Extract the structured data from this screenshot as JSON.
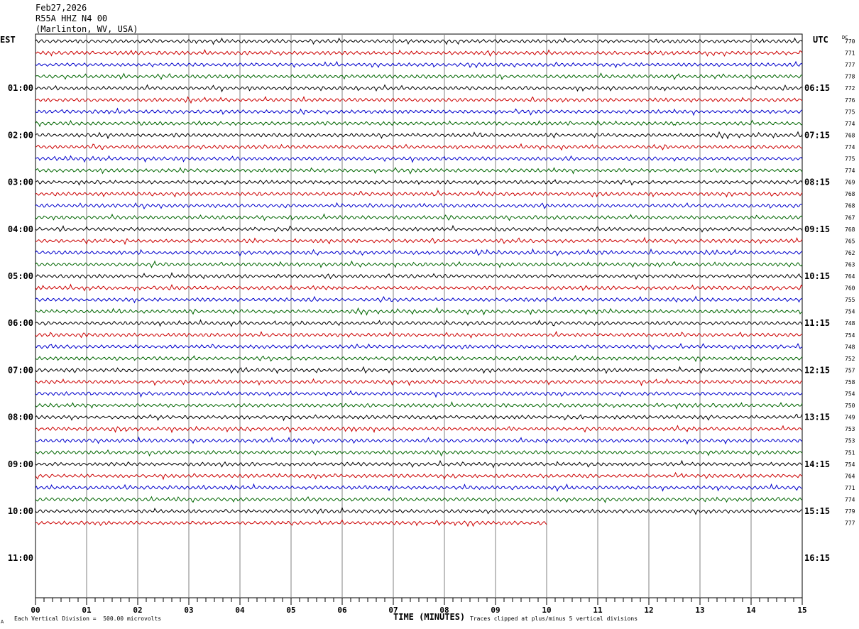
{
  "header": {
    "date": "Feb27,2026",
    "station": "R55A HHZ N4 00",
    "location": "(Marlinton, WV, USA)"
  },
  "left_timezone": "EST",
  "right_timezone": "UTC",
  "dc_label": "DC",
  "footer": {
    "scale_note": "Each Vertical Division =  500.00 microvolts",
    "clip_note": "Traces clipped at plus/minus 5 vertical divisions",
    "corner_mark": "A"
  },
  "trace_colors": [
    "#000000",
    "#cc0000",
    "#0000cc",
    "#006600"
  ],
  "chart_data": {
    "type": "line",
    "title": "R55A HHZ N4 00",
    "xlabel": "TIME (MINUTES)",
    "ylabel": "",
    "xlim": [
      0,
      15
    ],
    "x_ticks": [
      "00",
      "01",
      "02",
      "03",
      "04",
      "05",
      "06",
      "07",
      "08",
      "09",
      "10",
      "11",
      "12",
      "13",
      "14",
      "15"
    ],
    "minutes_per_line": 15,
    "left_hour_labels": [
      "01:00",
      "02:00",
      "03:00",
      "04:00",
      "05:00",
      "06:00",
      "07:00",
      "08:00",
      "09:00",
      "10:00",
      "11:00"
    ],
    "right_hour_labels": [
      "06:15",
      "07:15",
      "08:15",
      "09:15",
      "10:15",
      "11:15",
      "12:15",
      "13:15",
      "14:15",
      "15:15",
      "16:15"
    ],
    "dc_offsets": [
      770,
      771,
      777,
      778,
      772,
      776,
      775,
      774,
      768,
      774,
      775,
      774,
      769,
      768,
      768,
      767,
      768,
      765,
      762,
      763,
      764,
      760,
      755,
      754,
      748,
      754,
      748,
      752,
      757,
      758,
      754,
      750,
      749,
      753,
      753,
      751,
      754,
      764,
      771,
      774,
      779,
      777
    ],
    "trace_count": 42,
    "last_trace_end_minute": 10,
    "grid": true
  }
}
